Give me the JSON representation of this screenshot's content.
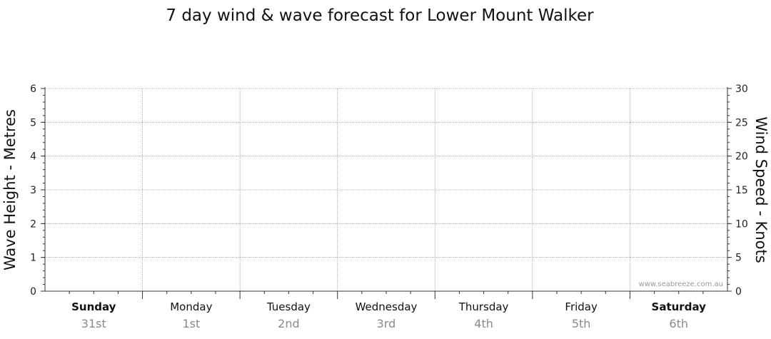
{
  "chart_data": {
    "type": "line",
    "title": "7 day wind & wave forecast for Lower Mount Walker",
    "ylabel_left": "Wave Height - Metres",
    "ylabel_right": "Wind Speed - Knots",
    "ylim_left": [
      0,
      6
    ],
    "ylim_right": [
      0,
      30
    ],
    "yticks_left": [
      "0",
      "1",
      "2",
      "3",
      "4",
      "5",
      "6"
    ],
    "yticks_right": [
      "0",
      "5",
      "10",
      "15",
      "20",
      "25",
      "30"
    ],
    "grid": true,
    "days": [
      {
        "day": "Sunday",
        "date": "31st",
        "bold": true
      },
      {
        "day": "Monday",
        "date": "1st",
        "bold": false
      },
      {
        "day": "Tuesday",
        "date": "2nd",
        "bold": false
      },
      {
        "day": "Wednesday",
        "date": "3rd",
        "bold": false
      },
      {
        "day": "Thursday",
        "date": "4th",
        "bold": false
      },
      {
        "day": "Friday",
        "date": "5th",
        "bold": false
      },
      {
        "day": "Saturday",
        "date": "6th",
        "bold": true
      }
    ],
    "series": [],
    "watermark": "www.seabreeze.com.au"
  }
}
